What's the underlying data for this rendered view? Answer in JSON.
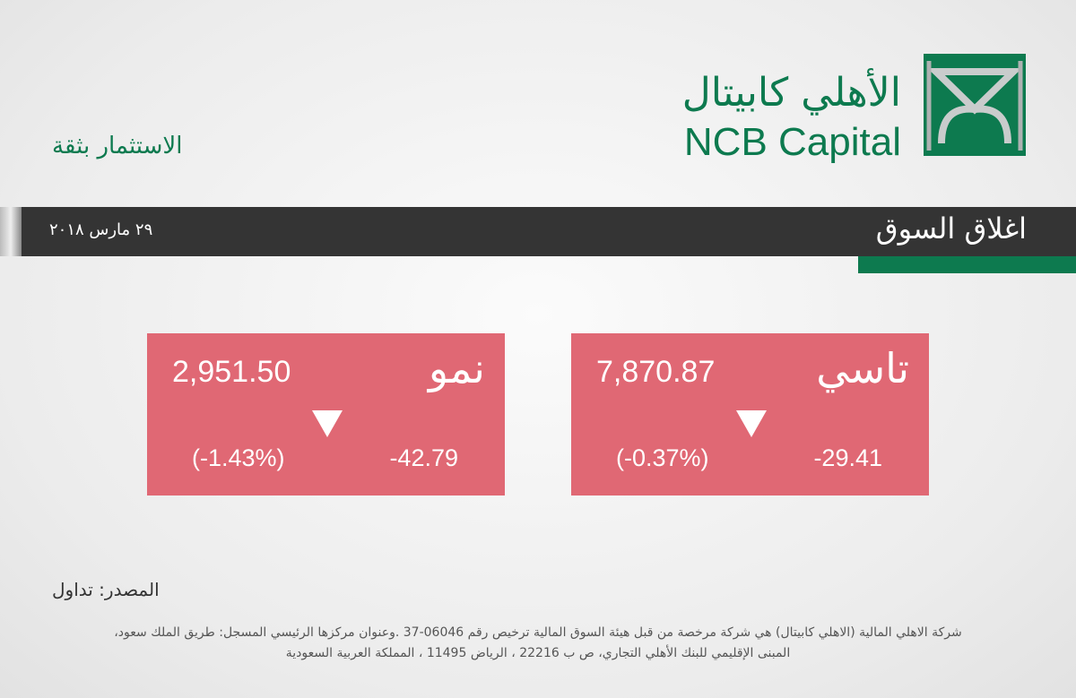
{
  "header": {
    "logo_arabic": "الأهلي كابيتال",
    "logo_english": "NCB Capital",
    "tagline": "الاستثمار بثقة"
  },
  "banner": {
    "title": "اغلاق السوق",
    "date": "٢٩ مارس ٢٠١٨"
  },
  "cards": [
    {
      "name": "تاسي",
      "value": "7,870.87",
      "change": "-29.41",
      "percent": "(-0.37%)"
    },
    {
      "name": "نمو",
      "value": "2,951.50",
      "change": "-42.79",
      "percent": "(-1.43%)"
    }
  ],
  "source": "المصدر: تداول",
  "footer": {
    "lines": [
      "شركة الاهلي المالية (الاهلي كابيتال) هي شركة مرخصة من قبل هيئة السوق المالية ترخيص رقم 06046-37 .وعنوان مركزها الرئيسي المسجل: طريق الملك سعود،",
      "المبنى الإقليمي للبنك الأهلي التجاري، ص ب 22216 ، الرياض 11495 ، المملكة العربية السعودية"
    ]
  }
}
